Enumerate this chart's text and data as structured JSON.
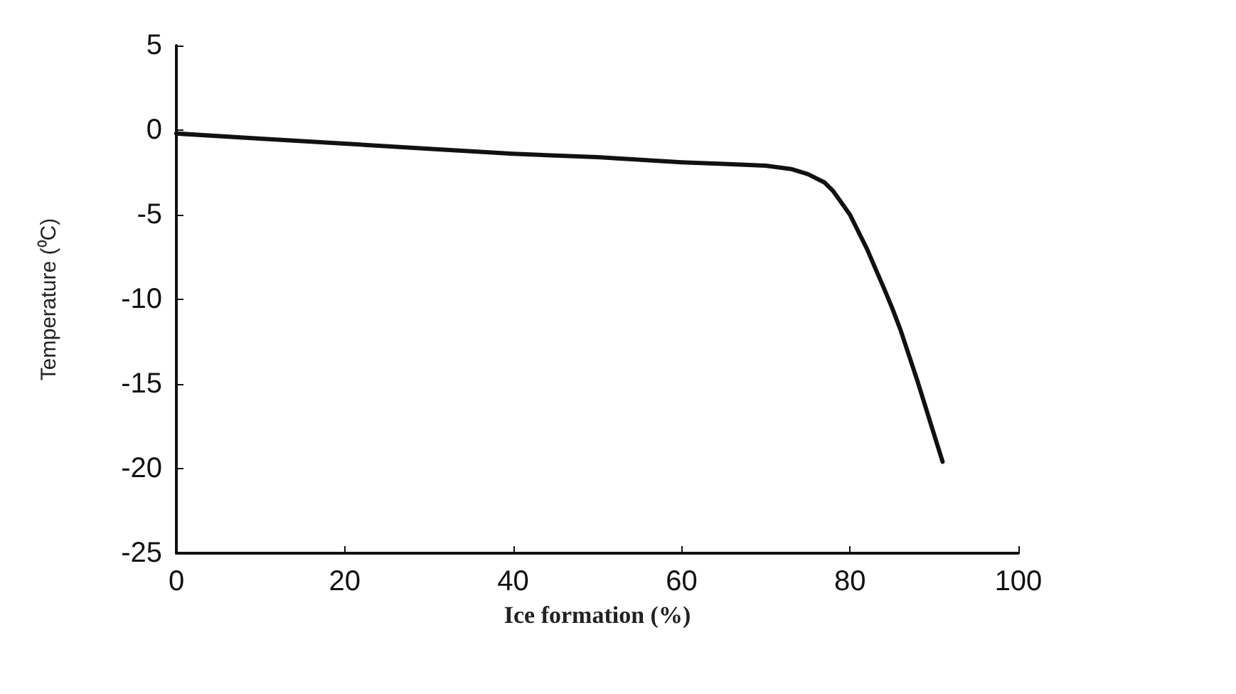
{
  "chart_data": {
    "type": "line",
    "xlabel": "Ice formation (%)",
    "ylabel": "Temperature (⁰C)",
    "x": [
      0,
      10,
      20,
      30,
      40,
      50,
      60,
      65,
      70,
      73,
      75,
      77,
      78,
      79,
      80,
      82,
      84,
      85,
      86,
      88,
      90,
      91
    ],
    "series": [
      {
        "color": "#111111",
        "values": [
          -0.2,
          -0.5,
          -0.8,
          -1.1,
          -1.4,
          -1.6,
          -1.9,
          -2,
          -2.1,
          -2.3,
          -2.6,
          -3.1,
          -3.6,
          -4.3,
          -5,
          -7,
          -9.3,
          -10.5,
          -11.8,
          -14.8,
          -18,
          -19.6
        ]
      }
    ],
    "xlim": [
      0,
      100
    ],
    "xticks": [
      0,
      20,
      40,
      60,
      80,
      100
    ],
    "ylim": [
      -25,
      5
    ],
    "yticks": [
      -25,
      -20,
      -15,
      -10,
      -5,
      0,
      5
    ],
    "grid": false,
    "marker": "none",
    "line_style": "solid"
  }
}
